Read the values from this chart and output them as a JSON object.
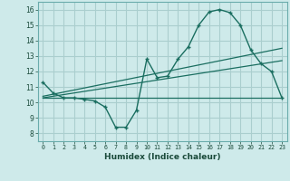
{
  "title": "",
  "xlabel": "Humidex (Indice chaleur)",
  "background_color": "#ceeaea",
  "grid_color": "#aacece",
  "line_color": "#1a6e60",
  "xlim": [
    -0.5,
    23.5
  ],
  "ylim": [
    7.5,
    16.5
  ],
  "xticks": [
    0,
    1,
    2,
    3,
    4,
    5,
    6,
    7,
    8,
    9,
    10,
    11,
    12,
    13,
    14,
    15,
    16,
    17,
    18,
    19,
    20,
    21,
    22,
    23
  ],
  "yticks": [
    8,
    9,
    10,
    11,
    12,
    13,
    14,
    15,
    16
  ],
  "curve1_x": [
    0,
    1,
    2,
    3,
    4,
    5,
    6,
    7,
    8,
    9,
    10,
    11,
    12,
    13,
    14,
    15,
    16,
    17,
    18,
    19,
    20,
    21,
    22,
    23
  ],
  "curve1_y": [
    11.3,
    10.6,
    10.3,
    10.3,
    10.2,
    10.1,
    9.7,
    8.4,
    8.4,
    9.5,
    12.8,
    11.6,
    11.7,
    12.8,
    13.6,
    15.0,
    15.85,
    16.0,
    15.8,
    15.0,
    13.4,
    12.5,
    12.0,
    10.3
  ],
  "line1_x": [
    0,
    23
  ],
  "line1_y": [
    10.3,
    10.3
  ],
  "line2_x": [
    0,
    23
  ],
  "line2_y": [
    10.4,
    13.5
  ],
  "line3_x": [
    0,
    23
  ],
  "line3_y": [
    10.3,
    12.7
  ]
}
